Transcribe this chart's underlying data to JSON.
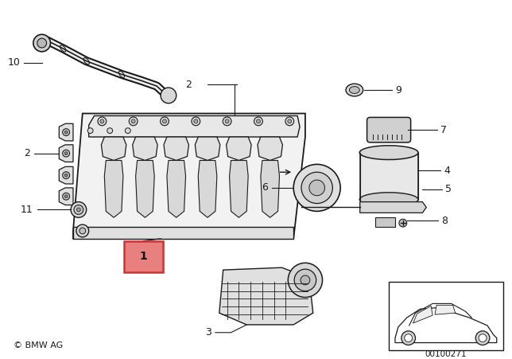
{
  "bg_color": "#ffffff",
  "line_color": "#1a1a1a",
  "highlight_color": "#e88080",
  "highlight_border": "#cc3333",
  "copyright_text": "© BMW AG",
  "part_number_text": "00100271"
}
